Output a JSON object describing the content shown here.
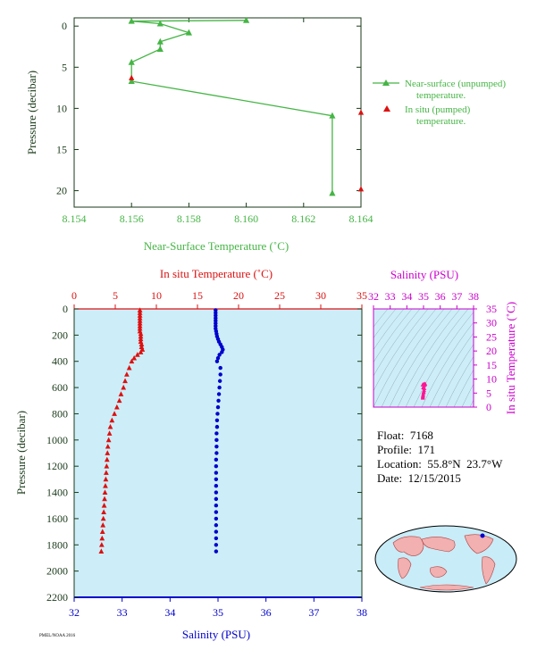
{
  "colors": {
    "near_surface": "#45b545",
    "in_situ_temp": "#dd1111",
    "salinity": "#0000cc",
    "ts_axis": "#cc00cc",
    "axis_dark": "#1a3a1a",
    "plot_bg": "#cdeef8"
  },
  "info": {
    "float": "Float:  7168",
    "profile": "Profile:  171",
    "location": "Location:  55.8°N  23.7°W",
    "date": "Date:  12/15/2015"
  },
  "footer": "PMEL/NOAA 2016",
  "chart_data": [
    {
      "type": "line",
      "name": "near-surface",
      "xlabel": "Near-Surface Temperature (˚C)",
      "ylabel": "Pressure (decibar)",
      "xlim": [
        8.154,
        8.164
      ],
      "ylim": [
        22,
        -1
      ],
      "xticks": [
        8.154,
        8.156,
        8.158,
        8.16,
        8.162,
        8.164
      ],
      "xtick_labels": [
        "8.154",
        "8.156",
        "8.158",
        "8.160",
        "8.162",
        "8.164"
      ],
      "yticks": [
        0,
        5,
        10,
        15,
        20
      ],
      "ytick_labels": [
        "0",
        "5",
        "10",
        "15",
        "20"
      ],
      "legend": [
        {
          "label_lines": [
            "Near-surface (unpumped)",
            "temperature."
          ],
          "marker": "triangle-line"
        },
        {
          "label_lines": [
            "In situ (pumped)",
            "temperature."
          ],
          "marker": "triangle"
        }
      ],
      "series": [
        {
          "values": [
            {
              "x": 8.16,
              "y": -0.7
            },
            {
              "x": 8.156,
              "y": -0.6
            },
            {
              "x": 8.157,
              "y": -0.3
            },
            {
              "x": 8.158,
              "y": 0.8
            },
            {
              "x": 8.157,
              "y": 1.9
            },
            {
              "x": 8.157,
              "y": 2.8
            },
            {
              "x": 8.156,
              "y": 4.4
            },
            {
              "x": 8.156,
              "y": 6.7
            },
            {
              "x": 8.163,
              "y": 10.9
            },
            {
              "x": 8.163,
              "y": 20.3
            }
          ]
        },
        {
          "values": [
            {
              "x": 8.156,
              "y": 6.3
            },
            {
              "x": 8.164,
              "y": 10.5
            },
            {
              "x": 8.164,
              "y": 19.8
            }
          ]
        }
      ]
    },
    {
      "type": "scatter",
      "name": "profile",
      "title": "In situ Temperature (˚C)",
      "xlabel": "Salinity (PSU)",
      "ylabel": "Pressure (decibar)",
      "top_axis_ticks": [
        "0",
        "5",
        "10",
        "15",
        "20",
        "25",
        "30",
        "35"
      ],
      "bottom_axis_ticks": [
        "32",
        "33",
        "34",
        "35",
        "36",
        "37",
        "38"
      ],
      "y_ticks": [
        "0",
        "200",
        "400",
        "600",
        "800",
        "1000",
        "1200",
        "1400",
        "1600",
        "1800",
        "2000",
        "2200"
      ],
      "temp_xlim": [
        0,
        35
      ],
      "sal_xlim": [
        32,
        38
      ],
      "ylim": [
        2200,
        0
      ],
      "temperature": [
        {
          "p": 10,
          "v": 8.0
        },
        {
          "p": 30,
          "v": 8.0
        },
        {
          "p": 50,
          "v": 8.0
        },
        {
          "p": 70,
          "v": 8.0
        },
        {
          "p": 90,
          "v": 8.0
        },
        {
          "p": 110,
          "v": 8.0
        },
        {
          "p": 130,
          "v": 8.0
        },
        {
          "p": 150,
          "v": 8.0
        },
        {
          "p": 170,
          "v": 8.0
        },
        {
          "p": 190,
          "v": 8.1
        },
        {
          "p": 210,
          "v": 8.1
        },
        {
          "p": 230,
          "v": 8.1
        },
        {
          "p": 250,
          "v": 8.1
        },
        {
          "p": 270,
          "v": 8.2
        },
        {
          "p": 290,
          "v": 8.2
        },
        {
          "p": 310,
          "v": 8.3
        },
        {
          "p": 330,
          "v": 8.1
        },
        {
          "p": 350,
          "v": 7.7
        },
        {
          "p": 375,
          "v": 7.3
        },
        {
          "p": 400,
          "v": 7.0
        },
        {
          "p": 450,
          "v": 6.7
        },
        {
          "p": 500,
          "v": 6.4
        },
        {
          "p": 550,
          "v": 6.2
        },
        {
          "p": 600,
          "v": 6.0
        },
        {
          "p": 650,
          "v": 5.7
        },
        {
          "p": 700,
          "v": 5.5
        },
        {
          "p": 750,
          "v": 5.2
        },
        {
          "p": 800,
          "v": 4.9
        },
        {
          "p": 850,
          "v": 4.6
        },
        {
          "p": 900,
          "v": 4.4
        },
        {
          "p": 950,
          "v": 4.3
        },
        {
          "p": 1000,
          "v": 4.2
        },
        {
          "p": 1050,
          "v": 4.1
        },
        {
          "p": 1100,
          "v": 4.05
        },
        {
          "p": 1150,
          "v": 4.0
        },
        {
          "p": 1200,
          "v": 3.95
        },
        {
          "p": 1250,
          "v": 3.9
        },
        {
          "p": 1300,
          "v": 3.85
        },
        {
          "p": 1350,
          "v": 3.8
        },
        {
          "p": 1400,
          "v": 3.75
        },
        {
          "p": 1450,
          "v": 3.7
        },
        {
          "p": 1500,
          "v": 3.65
        },
        {
          "p": 1550,
          "v": 3.6
        },
        {
          "p": 1600,
          "v": 3.55
        },
        {
          "p": 1650,
          "v": 3.5
        },
        {
          "p": 1700,
          "v": 3.45
        },
        {
          "p": 1750,
          "v": 3.4
        },
        {
          "p": 1800,
          "v": 3.35
        },
        {
          "p": 1850,
          "v": 3.3
        }
      ],
      "salinity": [
        {
          "p": 10,
          "v": 34.95
        },
        {
          "p": 30,
          "v": 34.95
        },
        {
          "p": 50,
          "v": 34.95
        },
        {
          "p": 70,
          "v": 34.95
        },
        {
          "p": 90,
          "v": 34.95
        },
        {
          "p": 110,
          "v": 34.95
        },
        {
          "p": 130,
          "v": 34.95
        },
        {
          "p": 150,
          "v": 34.95
        },
        {
          "p": 170,
          "v": 34.96
        },
        {
          "p": 190,
          "v": 34.97
        },
        {
          "p": 210,
          "v": 34.98
        },
        {
          "p": 230,
          "v": 35.0
        },
        {
          "p": 250,
          "v": 35.02
        },
        {
          "p": 270,
          "v": 35.05
        },
        {
          "p": 290,
          "v": 35.08
        },
        {
          "p": 310,
          "v": 35.1
        },
        {
          "p": 330,
          "v": 35.08
        },
        {
          "p": 350,
          "v": 35.03
        },
        {
          "p": 375,
          "v": 35.0
        },
        {
          "p": 400,
          "v": 34.98
        },
        {
          "p": 450,
          "v": 35.05
        },
        {
          "p": 500,
          "v": 35.05
        },
        {
          "p": 550,
          "v": 35.04
        },
        {
          "p": 600,
          "v": 35.03
        },
        {
          "p": 650,
          "v": 35.02
        },
        {
          "p": 700,
          "v": 35.01
        },
        {
          "p": 750,
          "v": 35.0
        },
        {
          "p": 800,
          "v": 34.99
        },
        {
          "p": 850,
          "v": 34.98
        },
        {
          "p": 900,
          "v": 34.98
        },
        {
          "p": 950,
          "v": 34.97
        },
        {
          "p": 1000,
          "v": 34.97
        },
        {
          "p": 1050,
          "v": 34.97
        },
        {
          "p": 1100,
          "v": 34.97
        },
        {
          "p": 1150,
          "v": 34.96
        },
        {
          "p": 1200,
          "v": 34.96
        },
        {
          "p": 1250,
          "v": 34.96
        },
        {
          "p": 1300,
          "v": 34.96
        },
        {
          "p": 1350,
          "v": 34.96
        },
        {
          "p": 1400,
          "v": 34.96
        },
        {
          "p": 1450,
          "v": 34.96
        },
        {
          "p": 1500,
          "v": 34.96
        },
        {
          "p": 1550,
          "v": 34.96
        },
        {
          "p": 1600,
          "v": 34.96
        },
        {
          "p": 1650,
          "v": 34.96
        },
        {
          "p": 1700,
          "v": 34.96
        },
        {
          "p": 1750,
          "v": 34.96
        },
        {
          "p": 1800,
          "v": 34.96
        },
        {
          "p": 1850,
          "v": 34.96
        }
      ]
    },
    {
      "type": "scatter",
      "name": "ts-diagram",
      "title": "Salinity (PSU)",
      "ylabel": "In situ Temperature (˚C)",
      "x_ticks": [
        "32",
        "33",
        "34",
        "35",
        "36",
        "37",
        "38"
      ],
      "y_ticks": [
        "0",
        "5",
        "10",
        "15",
        "20",
        "25",
        "30",
        "35"
      ],
      "xlim": [
        32,
        38
      ],
      "ylim": [
        0,
        35
      ],
      "points": [
        {
          "s": 34.96,
          "t": 3.3
        },
        {
          "s": 34.96,
          "t": 3.6
        },
        {
          "s": 34.96,
          "t": 3.9
        },
        {
          "s": 34.97,
          "t": 4.2
        },
        {
          "s": 34.98,
          "t": 4.6
        },
        {
          "s": 35.0,
          "t": 5.2
        },
        {
          "s": 35.01,
          "t": 5.5
        },
        {
          "s": 35.03,
          "t": 6.0
        },
        {
          "s": 35.05,
          "t": 6.7
        },
        {
          "s": 34.98,
          "t": 7.0
        },
        {
          "s": 35.03,
          "t": 7.7
        },
        {
          "s": 35.08,
          "t": 8.0
        },
        {
          "s": 35.1,
          "t": 8.3
        },
        {
          "s": 35.05,
          "t": 8.2
        },
        {
          "s": 35.0,
          "t": 8.1
        },
        {
          "s": 34.95,
          "t": 8.0
        }
      ]
    }
  ]
}
